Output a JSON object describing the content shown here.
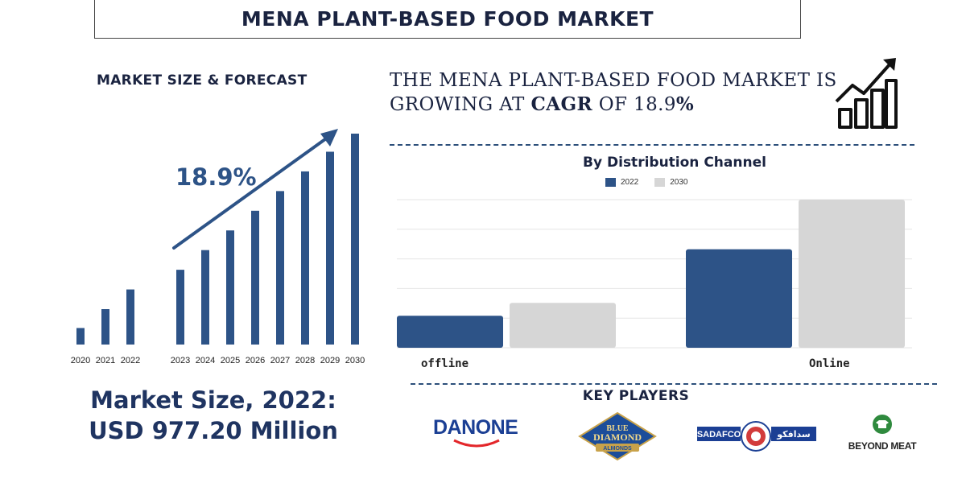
{
  "title": "MENA PLANT-BASED FOOD MARKET",
  "left_panel": {
    "heading": "MARKET SIZE & FORECAST",
    "cagr_label": "18.9%",
    "market_size_line1": "Market Size, 2022:",
    "market_size_line2": "USD 977.20 Million"
  },
  "headline": {
    "part1": "THE MENA PLANT-BASED FOOD MARKET IS",
    "part2a": "GROWING AT ",
    "part2b": "CAGR",
    "part2c": " OF 18.9",
    "part2d": "%"
  },
  "distribution": {
    "title": "By Distribution Channel"
  },
  "key_players": {
    "title": "KEY PLAYERS",
    "logos": [
      "DANONE",
      "BLUE DIAMOND ALMONDS",
      "SADAFCO",
      "BEYOND MEAT"
    ],
    "sadafco_arabic": "سدافكو"
  },
  "colors": {
    "navy": "#2d5387",
    "grey": "#d6d6d6",
    "dark": "#1a2340"
  },
  "chart_data": [
    {
      "type": "bar",
      "title": "MARKET SIZE & FORECAST",
      "categories": [
        "2020",
        "2021",
        "2022",
        "2023",
        "2024",
        "2025",
        "2026",
        "2027",
        "2028",
        "2029",
        "2030"
      ],
      "values": [
        21,
        45,
        70,
        95,
        120,
        145,
        170,
        195,
        220,
        245,
        268
      ],
      "annotation": "18.9%",
      "ylim": [
        0,
        280
      ],
      "grid": false,
      "note_visual": "values are relative bar heights; no y-axis shown"
    },
    {
      "type": "bar",
      "title": "By Distribution Channel",
      "categories": [
        "offline",
        "Online"
      ],
      "series": [
        {
          "name": "2022",
          "values": [
            40,
            123
          ]
        },
        {
          "name": "2030",
          "values": [
            56,
            185
          ]
        }
      ],
      "ylim": [
        0,
        185
      ],
      "grid": true,
      "legend": "top-center"
    }
  ]
}
